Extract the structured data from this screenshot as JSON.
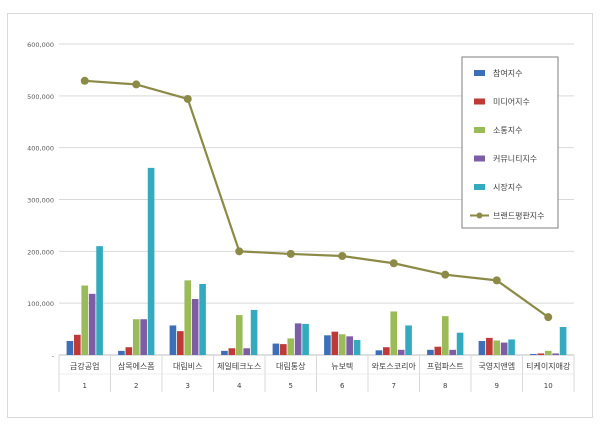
{
  "chart_data": {
    "type": "bar",
    "categories": [
      "금강공업",
      "삼목에스폼",
      "대림비스",
      "제일테크노스",
      "대림통상",
      "뉴보텍",
      "와토스코리아",
      "프럼파스트",
      "국영지앤엠",
      "티케이지애강"
    ],
    "ranks": [
      "1",
      "2",
      "3",
      "4",
      "5",
      "6",
      "7",
      "8",
      "9",
      "10"
    ],
    "ylim": [
      0,
      600000
    ],
    "yticks": [
      0,
      100000,
      200000,
      300000,
      400000,
      500000,
      600000
    ],
    "ytick_labels": [
      "-",
      "100,000",
      "200,000",
      "300,000",
      "400,000",
      "500,000",
      "600,000"
    ],
    "grid": true,
    "legend_position": "top-right",
    "series": [
      {
        "name": "참여지수",
        "type": "bar",
        "color": "#3c6fb7",
        "values": [
          27000,
          8000,
          57000,
          8000,
          22000,
          38000,
          9000,
          10000,
          27000,
          2000
        ]
      },
      {
        "name": "미디어지수",
        "type": "bar",
        "color": "#be3a37",
        "values": [
          39000,
          15000,
          46000,
          13000,
          21000,
          45000,
          15000,
          16000,
          33000,
          3000
        ]
      },
      {
        "name": "소통지수",
        "type": "bar",
        "color": "#9bbb59",
        "values": [
          134000,
          69000,
          144000,
          77000,
          32000,
          40000,
          84000,
          75000,
          28000,
          8000
        ]
      },
      {
        "name": "커뮤니티지수",
        "type": "bar",
        "color": "#7d5da3",
        "values": [
          118000,
          69000,
          108000,
          13000,
          61000,
          36000,
          10000,
          10000,
          24000,
          3000
        ]
      },
      {
        "name": "시장지수",
        "type": "bar",
        "color": "#34aabf",
        "values": [
          210000,
          361000,
          137000,
          87000,
          60000,
          29000,
          57000,
          43000,
          30000,
          54000
        ]
      },
      {
        "name": "브랜드평판지수",
        "type": "line",
        "color": "#8b8a46",
        "values": [
          529000,
          522000,
          494000,
          200000,
          195000,
          191000,
          177000,
          155000,
          144000,
          73000
        ]
      }
    ]
  }
}
